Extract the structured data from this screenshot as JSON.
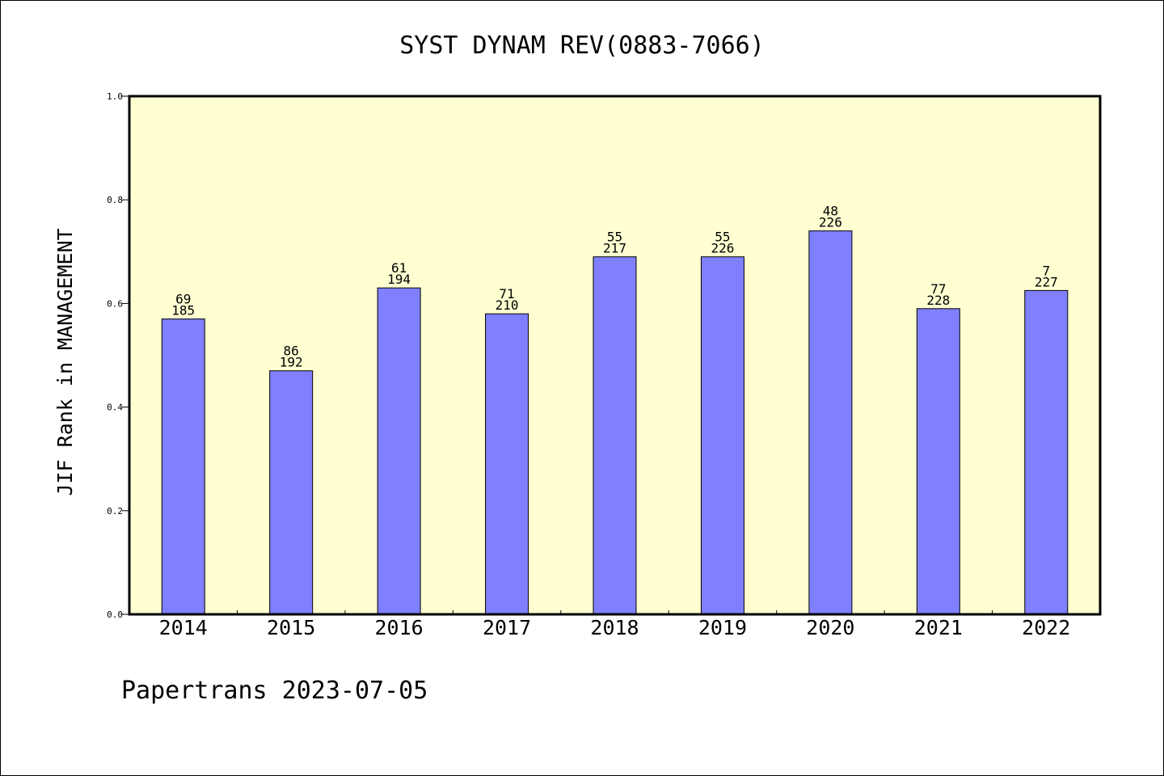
{
  "chart_data": {
    "type": "bar",
    "title": "SYST DYNAM REV(0883-7066)",
    "xlabel": "",
    "ylabel": "JIF Rank in MANAGEMENT",
    "ylim": [
      0,
      1.0
    ],
    "yticks": [
      "0.0",
      "0.2",
      "0.4",
      "0.6",
      "0.8",
      "1.0"
    ],
    "categories": [
      "2014",
      "2015",
      "2016",
      "2017",
      "2018",
      "2019",
      "2020",
      "2021",
      "2022"
    ],
    "values": [
      0.57,
      0.47,
      0.63,
      0.58,
      0.69,
      0.69,
      0.74,
      0.59,
      0.625
    ],
    "rank": [
      "69",
      "86",
      "61",
      "71",
      "55",
      "55",
      "48",
      "77",
      "7"
    ],
    "total": [
      "185",
      "192",
      "194",
      "210",
      "217",
      "226",
      "226",
      "228",
      "227"
    ],
    "grid": false,
    "legend": "none",
    "colors": {
      "plot_background": "#ffffd2",
      "bar_fill": "#8080ff",
      "bar_stroke": "#000000"
    }
  },
  "footer": "Papertrans 2023-07-05"
}
